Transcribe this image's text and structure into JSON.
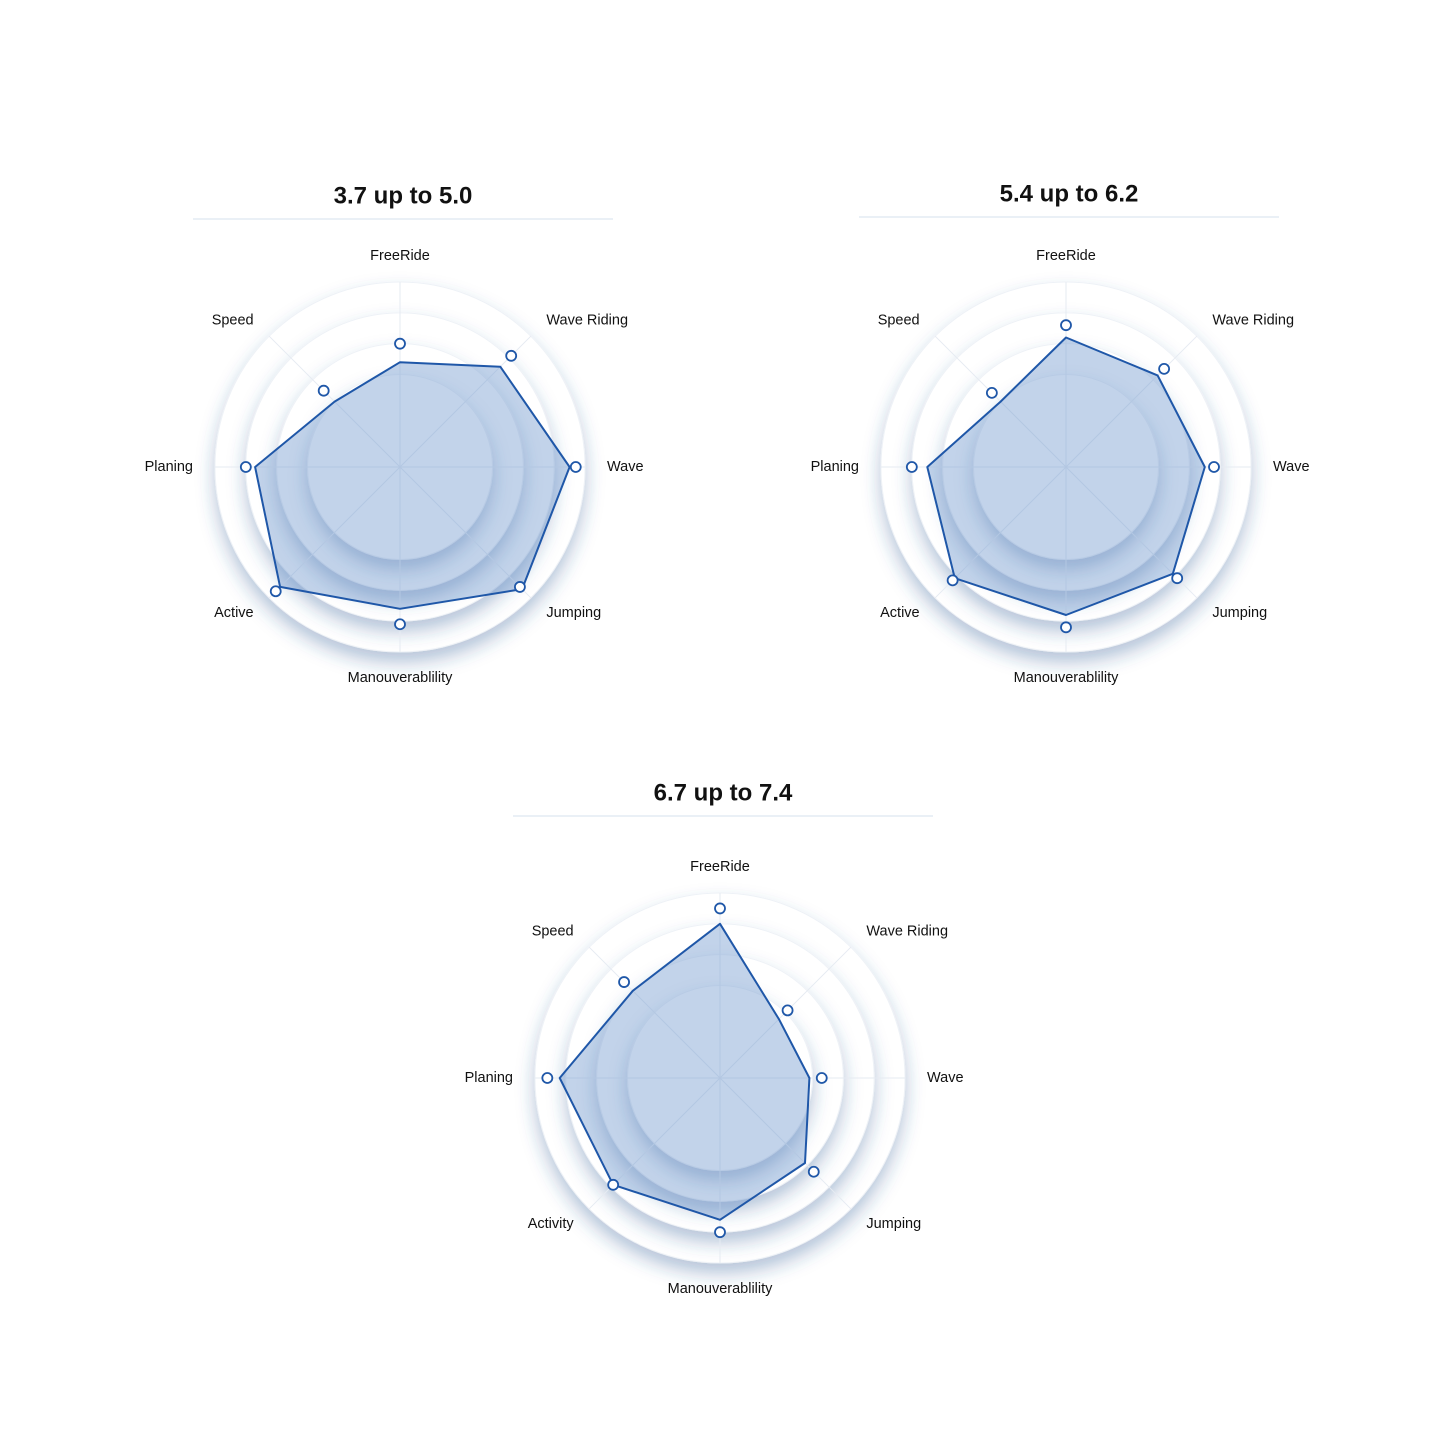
{
  "chart_data": [
    {
      "type": "radar",
      "title": "3.7 up to 5.0",
      "categories": [
        "FreeRide",
        "Wave Riding",
        "Wave",
        "Jumping",
        "Manouverablility",
        "Active",
        "Planing",
        "Speed"
      ],
      "ylim": [
        0,
        6
      ],
      "yticks": [
        3,
        4,
        5,
        6
      ],
      "series": [
        {
          "style": "area",
          "color": "#1f57a8",
          "values": [
            3.4,
            4.6,
            5.5,
            5.6,
            4.6,
            5.5,
            4.7,
            3.0
          ]
        },
        {
          "style": "markers",
          "color": "#1f57a8",
          "values": [
            4.0,
            5.1,
            5.7,
            5.5,
            5.1,
            5.7,
            5.0,
            3.5
          ]
        }
      ]
    },
    {
      "type": "radar",
      "title": "5.4 up to 6.2",
      "categories": [
        "FreeRide",
        "Wave Riding",
        "Wave",
        "Jumping",
        "Manouverablility",
        "Active",
        "Planing",
        "Speed"
      ],
      "ylim": [
        0,
        6
      ],
      "yticks": [
        3,
        4,
        5,
        6
      ],
      "series": [
        {
          "style": "area",
          "color": "#1f57a8",
          "values": [
            4.2,
            4.2,
            4.5,
            4.9,
            4.8,
            5.1,
            4.5,
            3.0
          ]
        },
        {
          "style": "markers",
          "color": "#1f57a8",
          "values": [
            4.6,
            4.5,
            4.8,
            5.1,
            5.2,
            5.2,
            5.0,
            3.4
          ]
        }
      ]
    },
    {
      "type": "radar",
      "title": "6.7 up to 7.4",
      "categories": [
        "FreeRide",
        "Wave Riding",
        "Wave",
        "Jumping",
        "Manouverablility",
        "Activity",
        "Planing",
        "Speed"
      ],
      "ylim": [
        0,
        6
      ],
      "yticks": [
        3,
        4,
        5,
        6
      ],
      "series": [
        {
          "style": "area",
          "color": "#1f57a8",
          "values": [
            5.0,
            2.7,
            2.9,
            3.9,
            4.6,
            4.9,
            5.2,
            4.0
          ]
        },
        {
          "style": "markers",
          "color": "#1f57a8",
          "values": [
            5.5,
            3.1,
            3.3,
            4.3,
            5.0,
            4.9,
            5.6,
            4.4
          ]
        }
      ]
    }
  ]
}
